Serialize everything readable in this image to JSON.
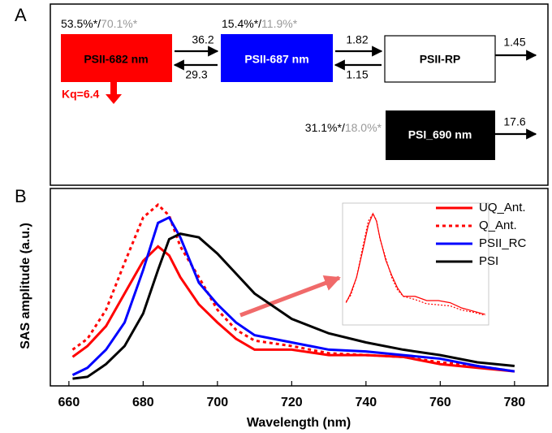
{
  "panels": {
    "a": "A",
    "b": "B"
  },
  "scheme": {
    "nodes": [
      {
        "label": "PSII-682 nm",
        "share": "53.5%*/",
        "share_alt": "70.1%*"
      },
      {
        "label": "PSII-687 nm",
        "share": "15.4%*/",
        "share_alt": "11.9%*"
      },
      {
        "label": "PSII-RP"
      },
      {
        "label": "PSI_690 nm",
        "share": "31.1%*/",
        "share_alt": "18.0%*"
      }
    ],
    "rates": {
      "k12": 36.2,
      "k21": 29.3,
      "k23": 1.82,
      "k32": 1.15,
      "k3out": 1.45,
      "k4out": 17.6
    },
    "quench": "Kq=6.4"
  },
  "chart_data": [
    {
      "type": "line",
      "ylabel": "SAS amplitude (a.u.)",
      "xlabel": "Wavelength (nm)",
      "x": [
        661,
        665,
        670,
        675,
        680,
        684,
        687,
        690,
        695,
        700,
        705,
        710,
        720,
        730,
        740,
        750,
        760,
        770,
        780
      ],
      "series": [
        {
          "name": "UQ_Ant.",
          "color": "#ff0000",
          "dash": false,
          "values": [
            0.12,
            0.18,
            0.29,
            0.47,
            0.65,
            0.73,
            0.68,
            0.56,
            0.41,
            0.31,
            0.22,
            0.16,
            0.16,
            0.13,
            0.13,
            0.12,
            0.08,
            0.06,
            0.04
          ]
        },
        {
          "name": "Q_Ant.",
          "color": "#ff0000",
          "dash": true,
          "values": [
            0.16,
            0.22,
            0.38,
            0.64,
            0.89,
            0.96,
            0.9,
            0.73,
            0.56,
            0.38,
            0.27,
            0.21,
            0.18,
            0.14,
            0.13,
            0.12,
            0.09,
            0.07,
            0.04
          ]
        },
        {
          "name": "PSII_RC",
          "color": "#0000ff",
          "dash": false,
          "values": [
            0.02,
            0.06,
            0.16,
            0.31,
            0.6,
            0.86,
            0.89,
            0.78,
            0.53,
            0.41,
            0.31,
            0.24,
            0.2,
            0.16,
            0.15,
            0.13,
            0.11,
            0.07,
            0.04
          ]
        },
        {
          "name": "PSI",
          "color": "#000000",
          "dash": false,
          "values": [
            0,
            0.01,
            0.08,
            0.18,
            0.36,
            0.6,
            0.77,
            0.8,
            0.78,
            0.69,
            0.58,
            0.47,
            0.33,
            0.25,
            0.2,
            0.16,
            0.13,
            0.09,
            0.07
          ]
        }
      ],
      "xlim": [
        655,
        789
      ],
      "xticks": [
        660,
        680,
        700,
        720,
        740,
        760,
        780
      ],
      "ylim": [
        -0.04,
        1.05
      ],
      "legend": "top-right"
    },
    {
      "type": "line",
      "x": [
        661,
        665,
        670,
        675,
        680,
        684,
        687,
        690,
        695,
        700,
        705,
        710,
        720,
        730,
        740,
        750,
        760,
        770,
        780
      ],
      "series": [
        {
          "color": "#ff0000",
          "dash": false,
          "values": [
            0.16,
            0.25,
            0.4,
            0.64,
            0.89,
            1.0,
            0.93,
            0.77,
            0.56,
            0.42,
            0.3,
            0.22,
            0.22,
            0.18,
            0.18,
            0.16,
            0.11,
            0.08,
            0.05
          ]
        },
        {
          "color": "#ff0000",
          "dash": true,
          "values": [
            0.17,
            0.23,
            0.4,
            0.67,
            0.93,
            1.0,
            0.94,
            0.76,
            0.58,
            0.4,
            0.28,
            0.22,
            0.19,
            0.15,
            0.14,
            0.13,
            0.09,
            0.07,
            0.04
          ]
        }
      ],
      "xlim": [
        658,
        783
      ],
      "ylim": [
        -0.05,
        1.1
      ]
    }
  ]
}
